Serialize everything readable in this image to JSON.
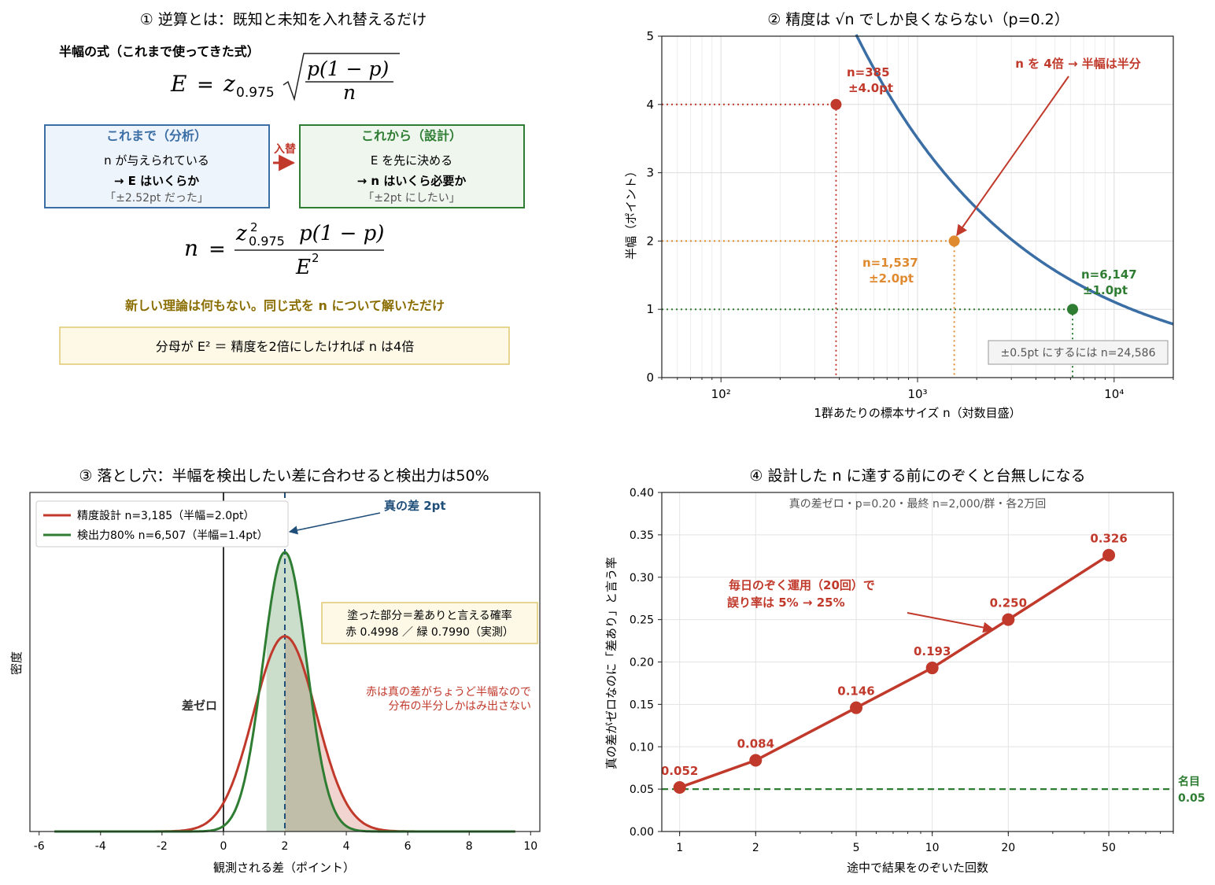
{
  "panel1": {
    "title": "① 逆算とは：既知と未知を入れ替えるだけ",
    "formula_label": "半幅の式（これまで使ってきた式）",
    "formula_E": "E = z0.975 √(p(1−p)/n)",
    "formula_n": "n = z²0.975 p(1−p) / E²",
    "box_left": {
      "title": "これまで（分析）",
      "line1": "n が与えられている",
      "line2": "→ E はいくらか",
      "line3": "「±2.52pt だった」"
    },
    "arrow_label": "入替",
    "box_right": {
      "title": "これから（設計）",
      "line1": "E を先に決める",
      "line2": "→ n はいくら必要か",
      "line3": "「±2pt にしたい」"
    },
    "note": "新しい理論は何もない。同じ式を n について解いただけ",
    "callout": "分母が E² ＝ 精度を2倍にしたければ n は4倍"
  },
  "panel2": {
    "title": "② 精度は √n でしか良くならない（p=0.2）",
    "xlabel": "1群あたりの標本サイズ n（対数目盛）",
    "ylabel": "半幅（ポイント）",
    "x_ticks": [
      "10²",
      "10³",
      "10⁴"
    ],
    "y_ticks": [
      "0",
      "1",
      "2",
      "3",
      "4",
      "5"
    ],
    "points": [
      {
        "label1": "n=385",
        "label2": "±4.0pt",
        "color": "#c0392b"
      },
      {
        "label1": "n=1,537",
        "label2": "±2.0pt",
        "color": "#e08a30"
      },
      {
        "label1": "n=6,147",
        "label2": "±1.0pt",
        "color": "#2e7d32"
      }
    ],
    "annotation": "n を 4倍 → 半幅は半分",
    "inset_box": "±0.5pt にするには n=24,586"
  },
  "panel3": {
    "title": "③ 落とし穴：半幅を検出したい差に合わせると検出力は50%",
    "xlabel": "観測される差（ポイント）",
    "ylabel": "密度",
    "x_ticks": [
      "-6",
      "-4",
      "-2",
      "0",
      "2",
      "4",
      "6",
      "8",
      "10"
    ],
    "legend": [
      "精度設計 n=3,185（半幅=2.0pt）",
      "検出力80% n=6,507（半幅=1.4pt）"
    ],
    "true_diff_label": "真の差 2pt",
    "zero_label": "差ゼロ",
    "box_line1": "塗った部分＝差ありと言える確率",
    "box_line2": "赤 0.4998 ／ 緑 0.7990（実測）",
    "red_note1": "赤は真の差がちょうど半幅なので",
    "red_note2": "分布の半分しかはみ出さない"
  },
  "panel4": {
    "title": "④ 設計した n に達する前にのぞくと台無しになる",
    "subtitle": "真の差ゼロ・p=0.20・最終 n=2,000/群・各2万回",
    "xlabel": "途中で結果をのぞいた回数",
    "ylabel": "真の差がゼロなのに「差あり」と言う率",
    "x_ticks": [
      "1",
      "2",
      "5",
      "10",
      "20",
      "50"
    ],
    "y_ticks": [
      "0.00",
      "0.05",
      "0.10",
      "0.15",
      "0.20",
      "0.25",
      "0.30",
      "0.35",
      "0.40"
    ],
    "value_labels": [
      "0.052",
      "0.084",
      "0.146",
      "0.193",
      "0.250",
      "0.326"
    ],
    "annot1": "毎日のぞく運用（20回）で",
    "annot2": "誤り率は 5% → 25%",
    "nominal1": "名目",
    "nominal2": "0.05"
  },
  "colors": {
    "blue": "#3a6ea5",
    "red": "#c0392b",
    "orange": "#e08a30",
    "green": "#2e7d32",
    "gold": "#8a6d00"
  },
  "chart_data": [
    {
      "type": "line",
      "title": "② 精度は √n でしか良くならない（p=0.2）",
      "xlabel": "1群あたりの標本サイズ n（対数目盛）",
      "ylabel": "半幅（ポイント）",
      "xscale": "log",
      "xlim": [
        50,
        20000
      ],
      "ylim": [
        0,
        5
      ],
      "grid": true,
      "curve": {
        "p": 0.2,
        "z": 1.96
      },
      "points": [
        {
          "x": 385,
          "y": 4.0
        },
        {
          "x": 1537,
          "y": 2.0
        },
        {
          "x": 6147,
          "y": 1.0
        }
      ]
    },
    {
      "type": "area",
      "title": "③ 落とし穴：半幅を検出したい差に合わせると検出力は50%",
      "xlabel": "観測される差（ポイント）",
      "ylabel": "密度",
      "xlim": [
        -6.3,
        10.3
      ],
      "true_difference": 2,
      "series": [
        {
          "name": "精度設計 n=3,185（半幅=2.0pt）",
          "mean": 2.0,
          "sd": 1.02,
          "threshold": 2.0,
          "power": 0.4998
        },
        {
          "name": "検出力80% n=6,507（半幅=1.4pt）",
          "mean": 2.0,
          "sd": 0.713,
          "threshold": 1.4,
          "power": 0.799
        }
      ]
    },
    {
      "type": "line",
      "title": "④ 設計した n に達する前にのぞくと台無しになる",
      "xlabel": "途中で結果をのぞいた回数",
      "ylabel": "真の差がゼロなのに「差あり」と言う率",
      "xscale": "log",
      "xlim": [
        0.85,
        90
      ],
      "ylim": [
        0,
        0.4
      ],
      "grid": true,
      "x": [
        1,
        2,
        5,
        10,
        20,
        50
      ],
      "values": [
        0.052,
        0.084,
        0.146,
        0.193,
        0.25,
        0.326
      ],
      "nominal": 0.05
    }
  ]
}
